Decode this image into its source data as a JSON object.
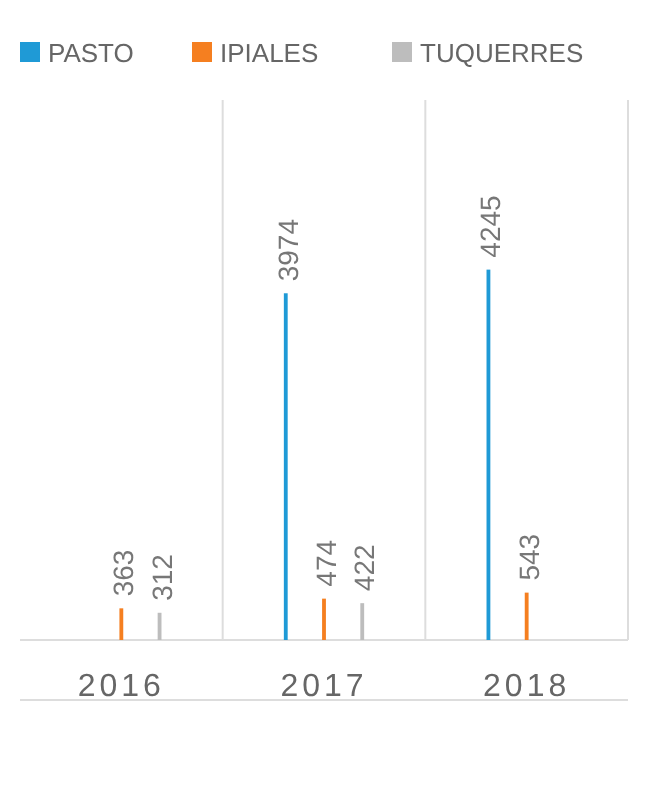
{
  "chart_data": {
    "type": "bar",
    "categories": [
      "2016",
      "2017",
      "2018"
    ],
    "series": [
      {
        "name": "PASTO",
        "color": "#1f9ad6",
        "values": [
          null,
          3974,
          4245
        ]
      },
      {
        "name": "IPIALES",
        "color": "#f57f20",
        "values": [
          363,
          474,
          543
        ]
      },
      {
        "name": "TUQUERRES",
        "color": "#bdbdbd",
        "values": [
          312,
          422,
          null
        ]
      }
    ],
    "data_labels": true,
    "legend": "top"
  }
}
